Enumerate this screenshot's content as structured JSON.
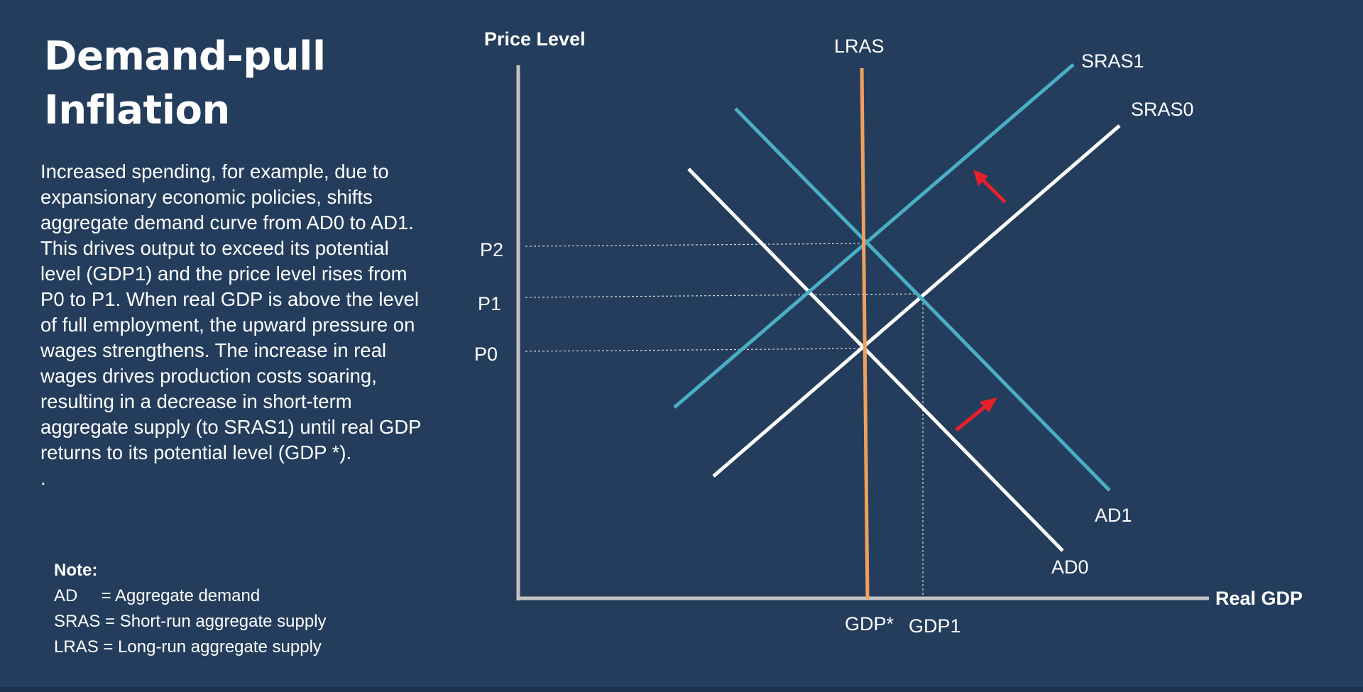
{
  "slide": {
    "title_line1": "Demand-pull",
    "title_line2": "Inflation",
    "body": "Increased spending, for example, due to expansionary economic policies, shifts aggregate demand curve from AD0 to AD1. This drives output to exceed its potential level (GDP1) and the price level rises from P0 to P1. When real GDP is above the level of full employment, the upward pressure on wages strengthens. The increase in real wages drives production costs soaring, resulting in a decrease in short-term aggregate supply (to SRAS1) until real GDP returns to its potential level (GDP *).",
    "trailing_dot": "."
  },
  "note": {
    "title": "Note:",
    "rows": [
      "AD     = Aggregate demand",
      "SRAS = Short-run aggregate supply",
      "LRAS = Long-run aggregate supply"
    ]
  },
  "diagram": {
    "y_axis_label": "Price Level",
    "x_axis_label": "Real GDP",
    "price_labels": {
      "p2": "P2",
      "p1": "P1",
      "p0": "P0"
    },
    "gdp_labels": {
      "gdp_star": "GDP*",
      "gdp1": "GDP1"
    },
    "curve_labels": {
      "lras": "LRAS",
      "sras1": "SRAS1",
      "sras0": "SRAS0",
      "ad1": "AD1",
      "ad0": "AD0"
    },
    "colors": {
      "background": "#243d5c",
      "axis": "#c4c4c4",
      "lras": "#f0a05a",
      "shifted_curves": "#4aaec4",
      "original_curves": "#ffffff",
      "arrows": "#e8202a"
    }
  }
}
